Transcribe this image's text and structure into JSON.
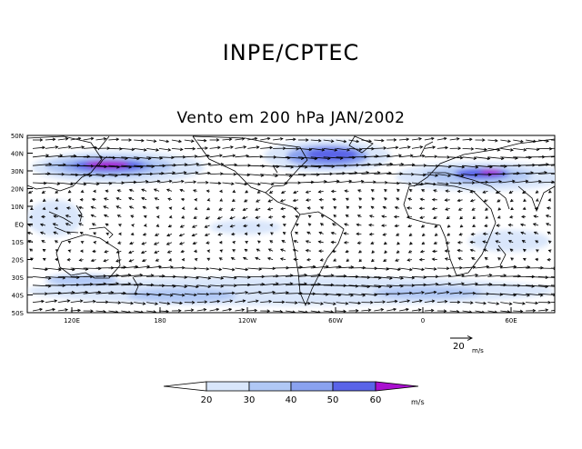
{
  "header": {
    "org": "INPE/CPTEC",
    "title": "Vento em 200 hPa JAN/2002"
  },
  "axes": {
    "lat_labels": [
      "50N",
      "40N",
      "30N",
      "20N",
      "10N",
      "EQ",
      "10S",
      "20S",
      "30S",
      "40S",
      "50S"
    ],
    "lon_labels": [
      "120E",
      "180",
      "120W",
      "60W",
      "0",
      "60E"
    ]
  },
  "reference_vector": {
    "value": "20",
    "unit": "m/s"
  },
  "colorbar": {
    "ticks": [
      "20",
      "30",
      "40",
      "50",
      "60"
    ],
    "unit": "m/s",
    "colors": [
      "#ffffff",
      "#d9e6fb",
      "#b0c8f5",
      "#8aa2ef",
      "#5a64e8",
      "#aa10d0"
    ]
  }
}
